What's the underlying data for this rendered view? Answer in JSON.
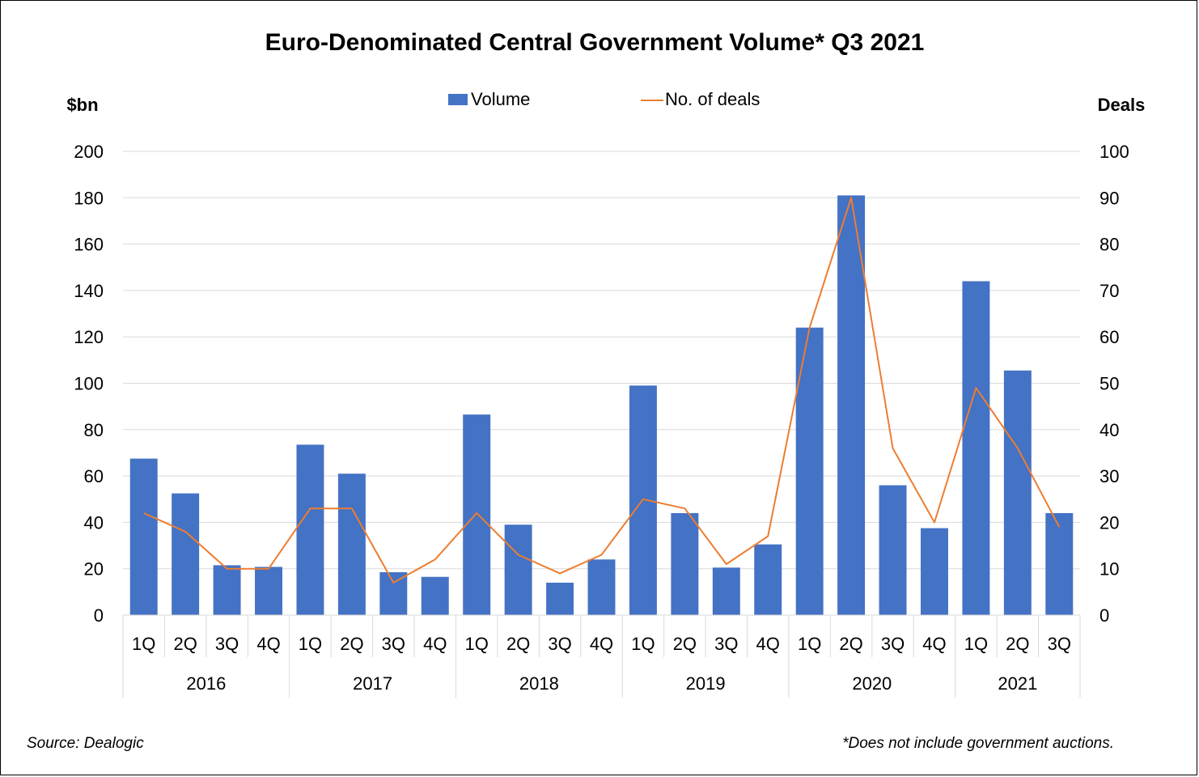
{
  "chart_data": {
    "type": "bar",
    "title": "Euro-Denominated Central Government Volume* Q3 2021",
    "left_axis_label": "$bn",
    "right_axis_label": "Deals",
    "ylim": [
      0,
      200
    ],
    "y2lim": [
      0,
      100
    ],
    "y_ticks": [
      "0",
      "20",
      "40",
      "60",
      "80",
      "100",
      "120",
      "140",
      "160",
      "180",
      "200"
    ],
    "y2_ticks": [
      "0",
      "10",
      "20",
      "30",
      "40",
      "50",
      "60",
      "70",
      "80",
      "90",
      "100"
    ],
    "gridlines": true,
    "legend_position": "top-center",
    "quarters": [
      "1Q",
      "2Q",
      "3Q",
      "4Q",
      "1Q",
      "2Q",
      "3Q",
      "4Q",
      "1Q",
      "2Q",
      "3Q",
      "4Q",
      "1Q",
      "2Q",
      "3Q",
      "4Q",
      "1Q",
      "2Q",
      "3Q",
      "4Q",
      "1Q",
      "2Q",
      "3Q"
    ],
    "year_groups": [
      {
        "label": "2016",
        "count": 4
      },
      {
        "label": "2017",
        "count": 4
      },
      {
        "label": "2018",
        "count": 4
      },
      {
        "label": "2019",
        "count": 4
      },
      {
        "label": "2020",
        "count": 4
      },
      {
        "label": "2021",
        "count": 3
      }
    ],
    "series": [
      {
        "name": "Volume",
        "type": "bar",
        "axis": "left",
        "color": "#4472C4",
        "values": [
          67.5,
          52.5,
          21.5,
          20.8,
          73.5,
          61,
          18.5,
          16.5,
          86.5,
          39,
          14,
          24,
          99,
          44,
          20.5,
          30.5,
          124,
          181,
          56,
          37.5,
          144,
          105.5,
          44
        ]
      },
      {
        "name": "No. of deals",
        "type": "line",
        "axis": "right",
        "color": "#ED7D31",
        "values": [
          22,
          18,
          10,
          10,
          23,
          23,
          7,
          12,
          22,
          13,
          9,
          13,
          25,
          23,
          11,
          17,
          62,
          90,
          36,
          20,
          49,
          36,
          19
        ]
      }
    ]
  },
  "footer": {
    "source": "Source: Dealogic",
    "note": "*Does not include government auctions."
  }
}
